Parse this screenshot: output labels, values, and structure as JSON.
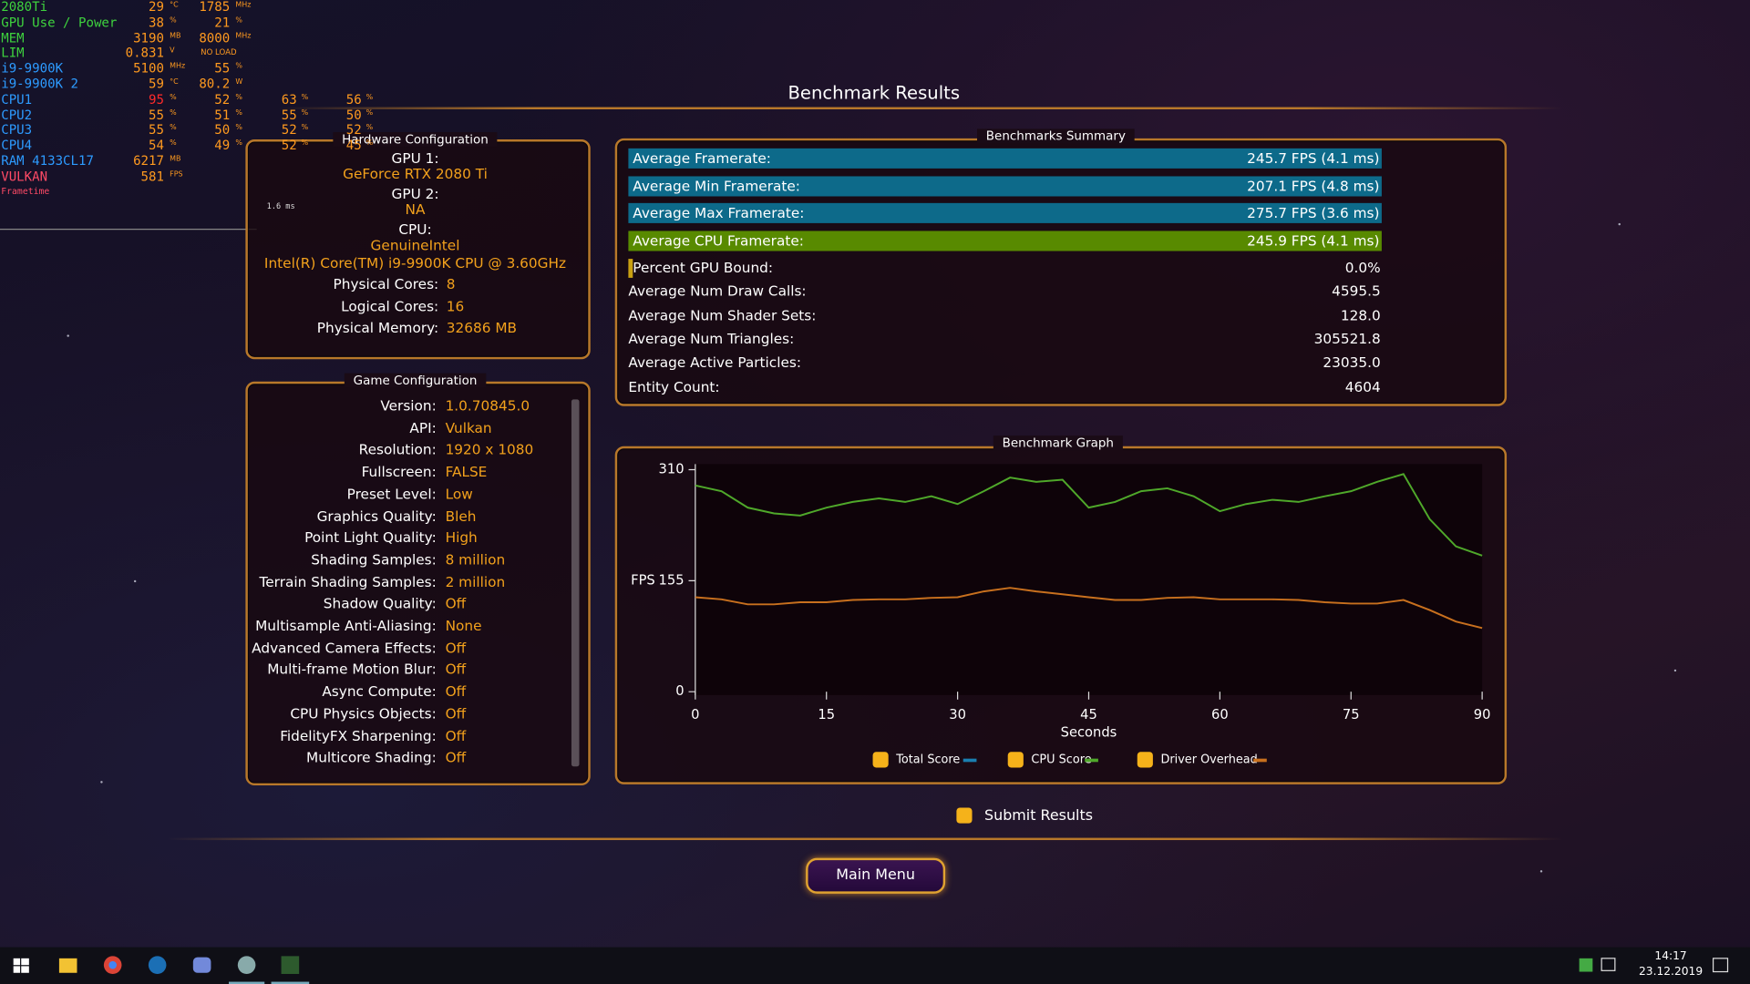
{
  "osd": {
    "rows": [
      [
        "2080Ti",
        "29",
        "°C",
        "1785",
        "MHz"
      ],
      [
        "GPU Use / Power",
        "38",
        "%",
        "21",
        "%"
      ],
      [
        "MEM",
        "3190",
        "MB",
        "8000",
        "MHz"
      ],
      [
        "LIM",
        "0.831",
        "V",
        "NO LOAD"
      ],
      [
        "i9-9900K",
        "5100",
        "MHz",
        "55",
        "%"
      ],
      [
        "i9-9900K 2",
        "59",
        "°C",
        "80.2",
        "W"
      ],
      [
        "CPU1",
        "95",
        "%",
        "52",
        "%",
        "63",
        "%",
        "56",
        "%"
      ],
      [
        "CPU2",
        "55",
        "%",
        "51",
        "%",
        "55",
        "%",
        "50",
        "%"
      ],
      [
        "CPU3",
        "55",
        "%",
        "50",
        "%",
        "52",
        "%",
        "52",
        "%"
      ],
      [
        "CPU4",
        "54",
        "%",
        "49",
        "%",
        "52",
        "%",
        "45",
        "%"
      ],
      [
        "RAM 4133CL17",
        "6217",
        "MB"
      ],
      [
        "VULKAN",
        "581",
        "FPS"
      ]
    ],
    "frametime_label": "Frametime",
    "frametime_value": "1.6 ms"
  },
  "title": "Benchmark Results",
  "hardware": {
    "title": "Hardware Configuration",
    "stacked": [
      {
        "label": "GPU 1:",
        "values": [
          "GeForce RTX 2080 Ti"
        ]
      },
      {
        "label": "GPU 2:",
        "values": [
          "NA"
        ]
      },
      {
        "label": "CPU:",
        "values": [
          "GenuineIntel",
          "Intel(R) Core(TM) i9-9900K CPU @ 3.60GHz"
        ]
      }
    ],
    "inline": [
      {
        "label": "Physical Cores:",
        "value": "8"
      },
      {
        "label": "Logical Cores:",
        "value": "16"
      },
      {
        "label": "Physical Memory:",
        "value": "32686  MB"
      }
    ]
  },
  "game_configuration": {
    "title": "Game Configuration",
    "items": [
      {
        "label": "Version:",
        "value": "1.0.70845.0"
      },
      {
        "label": "API:",
        "value": "Vulkan"
      },
      {
        "label": "Resolution:",
        "value": "1920 x 1080"
      },
      {
        "label": "Fullscreen:",
        "value": "FALSE"
      },
      {
        "label": "Preset Level:",
        "value": "Low"
      },
      {
        "label": "Graphics Quality:",
        "value": "Bleh"
      },
      {
        "label": "Point Light Quality:",
        "value": "High"
      },
      {
        "label": "Shading Samples:",
        "value": "8 million"
      },
      {
        "label": "Terrain Shading Samples:",
        "value": "2 million"
      },
      {
        "label": "Shadow Quality:",
        "value": "Off"
      },
      {
        "label": "Multisample Anti-Aliasing:",
        "value": "None"
      },
      {
        "label": "Advanced Camera Effects:",
        "value": "Off"
      },
      {
        "label": "Multi-frame Motion Blur:",
        "value": "Off"
      },
      {
        "label": "Async Compute:",
        "value": "Off"
      },
      {
        "label": "CPU Physics Objects:",
        "value": "Off"
      },
      {
        "label": "FidelityFX Sharpening:",
        "value": "Off"
      },
      {
        "label": "Multicore Shading:",
        "value": "Off"
      }
    ]
  },
  "summary": {
    "title": "Benchmarks Summary",
    "bars": [
      {
        "label": "Average Framerate:",
        "value": "245.7 FPS (4.1 ms)",
        "color": "#0d6a8a"
      },
      {
        "label": "Average Min Framerate:",
        "value": "207.1 FPS (4.8 ms)",
        "color": "#0d6a8a"
      },
      {
        "label": "Average Max Framerate:",
        "value": "275.7 FPS (3.6 ms)",
        "color": "#0d6a8a"
      },
      {
        "label": "Average CPU Framerate:",
        "value": "245.9 FPS (4.1 ms)",
        "color": "#588a00"
      }
    ],
    "rows": [
      {
        "label": "Percent GPU Bound:",
        "value": "0.0%"
      },
      {
        "label": "Average Num Draw Calls:",
        "value": "4595.5"
      },
      {
        "label": "Average Num Shader Sets:",
        "value": "128.0"
      },
      {
        "label": "Average Num Triangles:",
        "value": "305521.8"
      },
      {
        "label": "Average Active Particles:",
        "value": "23035.0"
      },
      {
        "label": "Entity Count:",
        "value": "4604"
      }
    ]
  },
  "chart_data": {
    "type": "line",
    "title": "Benchmark Graph",
    "x_label": "Seconds",
    "y_label": "FPS",
    "x": [
      0,
      3,
      6,
      9,
      12,
      15,
      18,
      21,
      24,
      27,
      30,
      33,
      36,
      39,
      42,
      45,
      48,
      51,
      54,
      57,
      60,
      63,
      66,
      69,
      72,
      75,
      78,
      81,
      84,
      87,
      90
    ],
    "series": [
      {
        "name": "Total Score",
        "color": "#1a7fb0",
        "values": [
          null,
          null,
          null,
          null,
          null,
          null,
          null,
          null,
          null,
          null,
          null,
          null,
          null,
          null,
          null,
          null,
          null,
          null,
          null,
          null,
          null,
          null,
          null,
          null,
          null,
          null,
          null,
          null,
          null,
          null,
          null
        ]
      },
      {
        "name": "CPU Score",
        "color": "#4fa82a",
        "values": [
          288,
          280,
          257,
          249,
          246,
          257,
          265,
          270,
          265,
          273,
          262,
          280,
          299,
          293,
          296,
          257,
          265,
          280,
          284,
          273,
          252,
          262,
          268,
          265,
          273,
          280,
          293,
          304,
          241,
          203,
          190
        ]
      },
      {
        "name": "Driver Overhead",
        "color": "#c8701e",
        "values": [
          132,
          129,
          122,
          122,
          125,
          125,
          128,
          129,
          129,
          131,
          132,
          140,
          145,
          140,
          136,
          132,
          128,
          128,
          131,
          132,
          129,
          129,
          129,
          128,
          125,
          123,
          123,
          128,
          114,
          98,
          89
        ]
      }
    ],
    "xlim": [
      0,
      90
    ],
    "xticks": [
      0,
      15,
      30,
      45,
      60,
      75,
      90
    ],
    "ylim": [
      0,
      310
    ],
    "yticks": [
      0,
      155,
      310
    ]
  },
  "submit_label": "Submit Results",
  "main_menu_button": "Main Menu",
  "clock": {
    "time": "14:17",
    "date": "23.12.2019"
  }
}
